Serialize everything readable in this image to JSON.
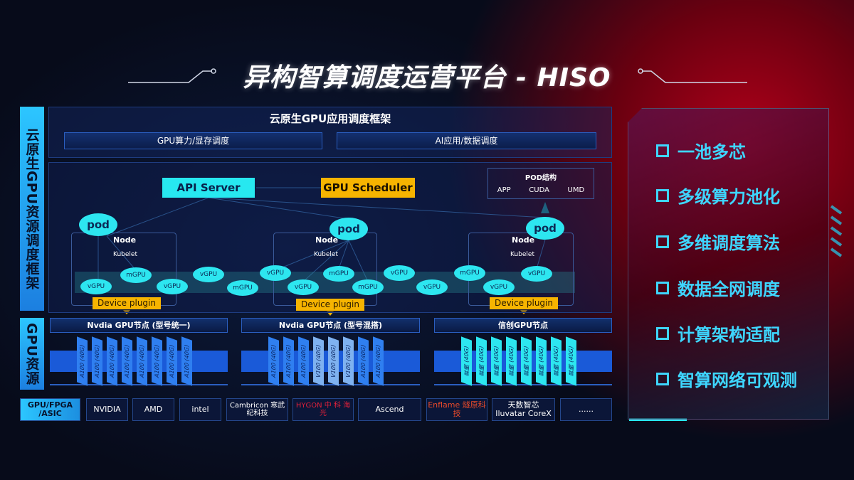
{
  "title": "异构智算调度运营平台 - HISO",
  "side_labels": {
    "framework": "云原生GPU资源调度框架",
    "resources": "GPU资源"
  },
  "app_framework": {
    "title": "云原生GPU应用调度框架",
    "items": [
      "GPU算力/显存调度",
      "AI应用/数据调度"
    ]
  },
  "diagram": {
    "api_server": "API Server",
    "gpu_scheduler": "GPU Scheduler",
    "pod_structure": {
      "title": "POD结构",
      "items": [
        "APP",
        "CUDA",
        "UMD"
      ]
    },
    "pod": "pod",
    "node": "Node",
    "kubelet": "Kubelet",
    "device_plugin": "Device plugin",
    "units": [
      "vGPU",
      "mGPU",
      "vGPU",
      "vGPU",
      "mGPU",
      "vGPU",
      "vGPU",
      "mGPU",
      "mGPU",
      "vGPU",
      "vGPU",
      "mGPU",
      "vGPU",
      "vGPU"
    ]
  },
  "gpu_groups": [
    {
      "title": "Nvdia GPU节点 (型号统一)",
      "cards": [
        "A100 (40G)",
        "A100 (40G)",
        "A100 (40G)",
        "A100 (40G)",
        "A100 (40G)",
        "A100 (40G)",
        "A100 (40G)",
        "A100 (40G)"
      ]
    },
    {
      "title": "Nvdia GPU节点 (型号混搭)",
      "cards": [
        "A100 (40G)",
        "A100 (40G)",
        "A100 (40G)",
        "V100 (40G)",
        "V100 (40G)",
        "V100 (40G)",
        "A100 (40G)",
        "A100 (40G)"
      ]
    },
    {
      "title": "信创GPU节点",
      "cards": [
        "昇腾 (40G)",
        "昇腾 (40G)",
        "昇腾 (40G)",
        "昇腾 (40G)",
        "昇腾 (40G)",
        "昇腾 (40G)",
        "昇腾 (40G)",
        "昇腾 (40G)"
      ]
    }
  ],
  "vendors": {
    "label": "GPU/FPGA /ASIC",
    "items": [
      "NVIDIA",
      "AMD",
      "intel",
      "Cambricon 寒武纪科技",
      "HYGON 中 科 海 光",
      "Ascend",
      "Enflame 燧原科技",
      "天数智芯 Iluvatar CoreX",
      "......"
    ]
  },
  "features": [
    "一池多芯",
    "多级算力池化",
    "多维调度算法",
    "数据全网调度",
    "计算架构适配",
    "智算网络可观测"
  ],
  "colors": {
    "cyan": "#27e8f0",
    "yellow": "#f6b400",
    "blue": "#1a5ad8",
    "feature_text": "#3ed6ff"
  }
}
